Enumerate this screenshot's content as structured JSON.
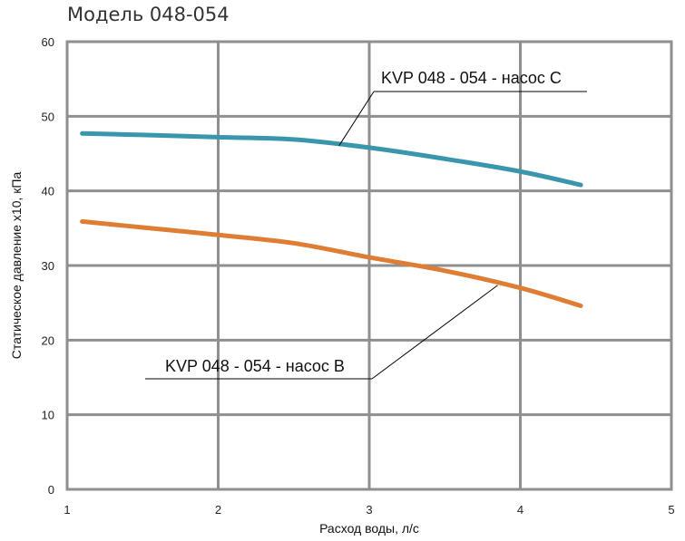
{
  "chart_data": {
    "type": "line",
    "title": "Модель 048-054",
    "xlabel": "Расход воды, л/с",
    "ylabel": "Статическое давление х10, кПа",
    "xlim": [
      1,
      5
    ],
    "ylim": [
      0,
      60
    ],
    "x_ticks": [
      "1",
      "2",
      "3",
      "4",
      "5"
    ],
    "y_ticks": [
      "0",
      "10",
      "20",
      "30",
      "40",
      "50",
      "60"
    ],
    "grid": true,
    "series": [
      {
        "name": "KVP 048 - 054 - насос C",
        "color": "#3a96ad",
        "points": [
          {
            "x": 1.1,
            "y": 47.7
          },
          {
            "x": 1.5,
            "y": 47.5
          },
          {
            "x": 2.0,
            "y": 47.2
          },
          {
            "x": 2.5,
            "y": 46.9
          },
          {
            "x": 3.0,
            "y": 45.8
          },
          {
            "x": 3.5,
            "y": 44.3
          },
          {
            "x": 4.0,
            "y": 42.6
          },
          {
            "x": 4.4,
            "y": 40.8
          }
        ]
      },
      {
        "name": "KVP 048 - 054 - насос B",
        "color": "#e07d34",
        "points": [
          {
            "x": 1.1,
            "y": 35.9
          },
          {
            "x": 1.5,
            "y": 35.1
          },
          {
            "x": 2.0,
            "y": 34.1
          },
          {
            "x": 2.5,
            "y": 33.0
          },
          {
            "x": 3.0,
            "y": 31.1
          },
          {
            "x": 3.5,
            "y": 29.3
          },
          {
            "x": 4.0,
            "y": 27.0
          },
          {
            "x": 4.4,
            "y": 24.6
          }
        ]
      }
    ]
  }
}
